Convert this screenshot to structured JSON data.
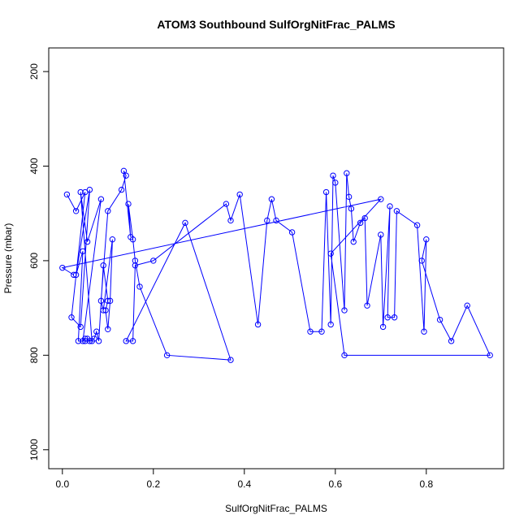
{
  "chart_data": {
    "type": "line",
    "title": "ATOM3 Southbound SulfOrgNitFrac_PALMS",
    "xlabel": "SulfOrgNitFrac_PALMS",
    "ylabel": "Pressure (mbar)",
    "xlim": [
      -0.03,
      0.97
    ],
    "ylim": [
      1040,
      150
    ],
    "y_reversed": true,
    "x_ticks": [
      "0.0",
      "0.2",
      "0.4",
      "0.6",
      "0.8"
    ],
    "x_tick_values": [
      0.0,
      0.2,
      0.4,
      0.6,
      0.8
    ],
    "y_ticks": [
      "200",
      "400",
      "600",
      "800",
      "1000"
    ],
    "y_tick_values": [
      200,
      400,
      600,
      800,
      1000
    ],
    "grid": false,
    "legend": "none",
    "color": "#0000ff",
    "series": [
      {
        "x": [
          0.01,
          0.03,
          0.05,
          0.02,
          0.04,
          0.06,
          0.03,
          0.045,
          0.035,
          0.05,
          0.065,
          0.04,
          0.055,
          0.085,
          0.045,
          0.05,
          0.055,
          0.06,
          0.07,
          0.075,
          0.08,
          0.09,
          0.1,
          0.095,
          0.1,
          0.105,
          0.11,
          0.09,
          0.085,
          0.1,
          0.13,
          0.14,
          0.135,
          0.15,
          0.145,
          0.155,
          0.16,
          0.17,
          0.23,
          0.37,
          0.27,
          0.14,
          0.155,
          0.16,
          0.2,
          0.36,
          0.37,
          0.39,
          0.43,
          0.45,
          0.46,
          0.47,
          0.505,
          0.545,
          0.57,
          0.58,
          0.59,
          0.595,
          0.6,
          0.62,
          0.625,
          0.63,
          0.635,
          0.64,
          0.655,
          0.665,
          0.67,
          0.7,
          0.705,
          0.72,
          0.715,
          0.73,
          0.735,
          0.78,
          0.795,
          0.8,
          0.79,
          0.83,
          0.855,
          0.89,
          0.94,
          0.62,
          0.59,
          0.7,
          0.0,
          0.025
        ],
        "y": [
          460,
          495,
          455,
          720,
          740,
          450,
          630,
          580,
          770,
          770,
          770,
          455,
          560,
          470,
          770,
          765,
          765,
          770,
          765,
          750,
          770,
          610,
          685,
          705,
          745,
          685,
          555,
          705,
          685,
          495,
          450,
          420,
          410,
          550,
          480,
          555,
          600,
          655,
          800,
          810,
          520,
          770,
          770,
          610,
          600,
          480,
          515,
          460,
          735,
          515,
          470,
          515,
          540,
          750,
          750,
          455,
          735,
          420,
          435,
          705,
          415,
          465,
          490,
          560,
          520,
          510,
          695,
          545,
          740,
          485,
          720,
          720,
          495,
          525,
          750,
          555,
          600,
          725,
          770,
          695,
          800,
          800,
          585,
          470,
          615,
          630
        ]
      }
    ]
  }
}
